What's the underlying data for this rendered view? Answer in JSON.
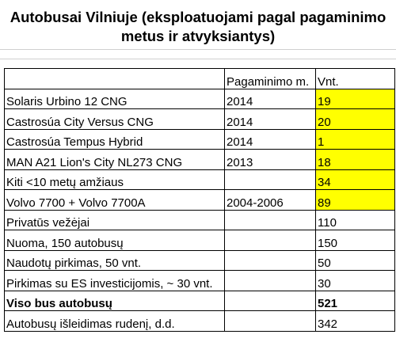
{
  "title_line1": "Autobusai Vilniuje (eksploatuojami pagal pagaminimo",
  "title_line2": "metus ir atvyksiantys)",
  "header": {
    "col1": "",
    "col2": "Pagaminimo m.",
    "col3": "Vnt."
  },
  "rows": [
    {
      "name": "Solaris Urbino 12 CNG",
      "year": "2014",
      "count": "19",
      "highlight": true
    },
    {
      "name": "Castrosúa City Versus CNG",
      "year": "2014",
      "count": "20",
      "highlight": true
    },
    {
      "name": "Castrosúa Tempus Hybrid",
      "year": "2014",
      "count": "1",
      "highlight": true
    },
    {
      "name": "MAN A21 Lion's City NL273 CNG",
      "year": "2013",
      "count": "18",
      "highlight": true
    },
    {
      "name": "Kiti <10 metų amžiaus",
      "year": "",
      "count": "34",
      "highlight": true
    },
    {
      "name": "Volvo 7700 + Volvo 7700A",
      "year": "2004-2006",
      "count": "89",
      "highlight": true
    },
    {
      "name": "Privatūs vežėjai",
      "year": "",
      "count": "110",
      "highlight": false
    },
    {
      "name": "Nuoma, 150 autobusų",
      "year": "",
      "count": "150",
      "highlight": false
    },
    {
      "name": "Naudotų pirkimas, 50 vnt.",
      "year": "",
      "count": "50",
      "highlight": false
    },
    {
      "name": "Pirkimas su ES investicijomis, ~ 30 vnt.",
      "year": "",
      "count": "30",
      "highlight": false
    },
    {
      "name": "Viso bus autobusų",
      "year": "",
      "count": "521",
      "highlight": false,
      "bold": true
    },
    {
      "name": "Autobusų išleidimas rudenį, d.d.",
      "year": "",
      "count": "342",
      "highlight": false
    }
  ],
  "colors": {
    "highlight": "#ffff00",
    "border": "#000000"
  }
}
